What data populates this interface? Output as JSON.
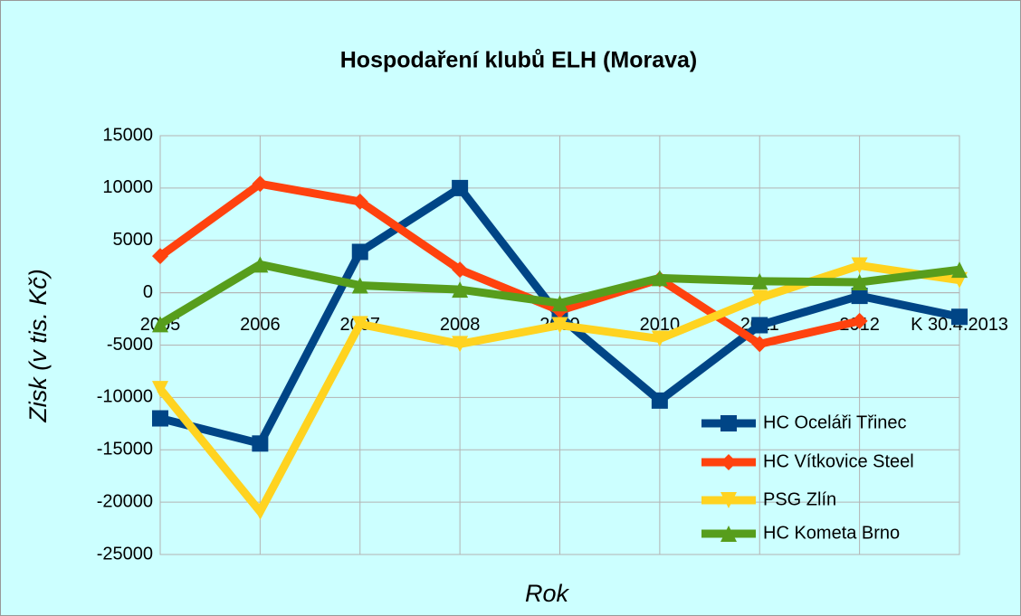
{
  "chart_data": {
    "type": "line",
    "title": "Hospodaření klubů ELH (Morava)",
    "x_label": "Rok",
    "y_label": "Zisk (v tis. Kč)",
    "categories": [
      "2005",
      "2006",
      "2007",
      "2008",
      "2009",
      "2010",
      "2011",
      "2012",
      "K 30.4.2013"
    ],
    "ylim": [
      -25000,
      15000
    ],
    "yticks": [
      -25000,
      -20000,
      -15000,
      -10000,
      -5000,
      0,
      5000,
      10000,
      15000
    ],
    "grid": true,
    "legend": "lower right",
    "series": [
      {
        "name": "HC Oceláři Třinec",
        "color": "#004586",
        "marker": "square",
        "values": [
          -12000,
          -14400,
          3900,
          10000,
          -2300,
          -10300,
          -3100,
          -300,
          -2300
        ]
      },
      {
        "name": "HC Vítkovice Steel",
        "color": "#ff420e",
        "marker": "diamond",
        "values": [
          3500,
          10400,
          8700,
          2200,
          -1700,
          1300,
          -4900,
          -2700,
          null
        ]
      },
      {
        "name": "PSG Zlín",
        "color": "#ffd320",
        "marker": "triangle-down",
        "values": [
          -9200,
          -20900,
          -3000,
          -4900,
          -3100,
          -4400,
          -500,
          2600,
          1200
        ]
      },
      {
        "name": "HC Kometa Brno",
        "color": "#579d1c",
        "marker": "triangle-up",
        "values": [
          -3000,
          2700,
          700,
          300,
          -1000,
          1400,
          1100,
          1000,
          2200
        ]
      }
    ]
  }
}
